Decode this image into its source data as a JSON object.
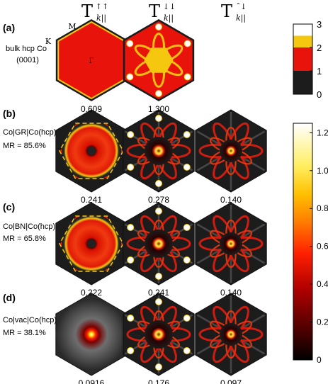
{
  "colors": {
    "black": "#1c1c1c",
    "red": "#e8140c",
    "yellow": "#f6c70f",
    "white": "#ffffff",
    "dark_red": "#7a0000"
  },
  "chart_data": {
    "type": "heatmap",
    "columns": [
      {
        "label": "T",
        "sup": "↑↑",
        "sub": "k||"
      },
      {
        "label": "T",
        "sup": "↓↓",
        "sub": "k||"
      },
      {
        "label": "T",
        "sup": "ˆ↓",
        "sub": "k||"
      }
    ],
    "rows": [
      {
        "letter": "(a)",
        "label_lines": [
          "bulk hcp Co",
          "(0001)"
        ],
        "values": [
          "0.609",
          "1.300"
        ]
      },
      {
        "letter": "(b)",
        "label_lines": [
          "Co|GR|Co(hcp)",
          "MR = 85.6%"
        ],
        "values": [
          "0.241",
          "0.278",
          "0.140"
        ]
      },
      {
        "letter": "(c)",
        "label_lines": [
          "Co|BN|Co(hcp)",
          "MR = 65.8%"
        ],
        "values": [
          "0.222",
          "0.241",
          "0.140"
        ]
      },
      {
        "letter": "(d)",
        "label_lines": [
          "Co|vac|Co(hcp)",
          "MR = 38.1%"
        ],
        "values": [
          "0.0916",
          "0.176",
          "0.097"
        ]
      }
    ],
    "bz_labels": {
      "M": "M",
      "K": "K",
      "Gamma": "Γ"
    },
    "colorbar_top": {
      "ticks": [
        "0",
        "1",
        "2",
        "3"
      ],
      "levels": [
        {
          "range": [
            0,
            1
          ],
          "color": "#1c1c1c"
        },
        {
          "range": [
            1,
            2
          ],
          "color": "#e8140c"
        },
        {
          "range": [
            2,
            2.5
          ],
          "color": "#f6c70f"
        },
        {
          "range": [
            2.5,
            3
          ],
          "color": "#ffffff"
        }
      ],
      "range": [
        0,
        3
      ]
    },
    "colorbar_bottom": {
      "ticks": [
        "0",
        "0.2",
        "0.4",
        "0.6",
        "0.8",
        "1.0",
        "1.2"
      ],
      "range": [
        0,
        1.25
      ]
    }
  }
}
